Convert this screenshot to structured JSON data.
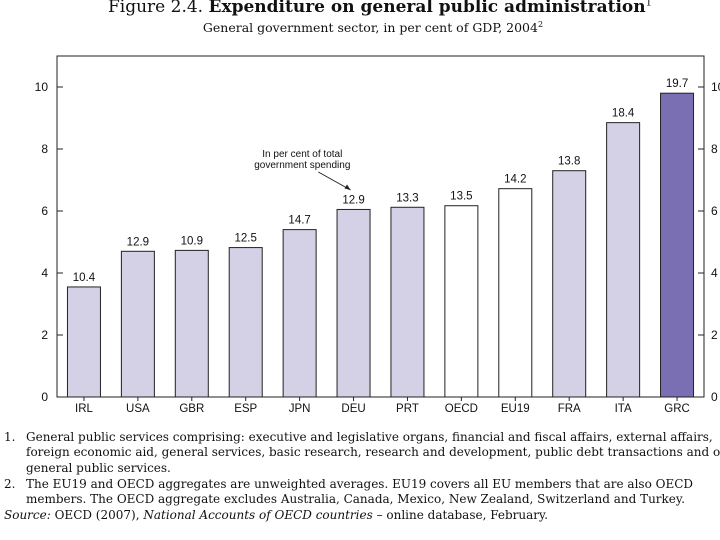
{
  "header": {
    "figure_label": "Figure 2.4.",
    "title": "Expenditure on general public administration",
    "title_note": "1",
    "subtitle": "General government sector, in per cent of GDP, 2004",
    "subtitle_note": "2"
  },
  "chart_data": {
    "type": "bar",
    "title": "Expenditure on general public administration",
    "subtitle": "General government sector, in per cent of GDP, 2004",
    "xlabel": "",
    "ylabel": "",
    "categories": [
      "IRL",
      "USA",
      "GBR",
      "ESP",
      "JPN",
      "DEU",
      "PRT",
      "OECD",
      "EU19",
      "FRA",
      "ITA",
      "GRC"
    ],
    "series": [
      {
        "name": "In per cent of GDP",
        "values": [
          3.55,
          4.7,
          4.73,
          4.82,
          5.4,
          6.05,
          6.12,
          6.17,
          6.72,
          7.3,
          8.85,
          9.8
        ]
      }
    ],
    "data_labels": [
      "10.4",
      "12.9",
      "10.9",
      "12.5",
      "14.7",
      "12.9",
      "13.3",
      "13.5",
      "14.2",
      "13.8",
      "18.4",
      "19.7"
    ],
    "data_labels_meaning": "In per cent of total government spending",
    "annotation": "In per cent of total\ngovernment spending",
    "ylim": [
      0,
      11
    ],
    "yticks": [
      0,
      2,
      4,
      6,
      8,
      10
    ],
    "tick_labels": [
      "0",
      "2",
      "4",
      "6",
      "8",
      "10"
    ],
    "grid": false,
    "right_axis": true,
    "colors": {
      "default": "#d4d1e6",
      "aggregate": "#ffffff",
      "highlight": "#7a6fb3",
      "stroke": "#222222"
    },
    "bar_styles": [
      "default",
      "default",
      "default",
      "default",
      "default",
      "default",
      "default",
      "aggregate",
      "aggregate",
      "default",
      "default",
      "highlight"
    ]
  },
  "notes": [
    {
      "num": "1.",
      "text": "General public services comprising: executive and legislative organs, financial and fiscal affairs, external affairs, foreign economic aid, general services, basic research, research and development, public debt transactions and other general public services."
    },
    {
      "num": "2.",
      "text": "The EU19 and OECD aggregates are unweighted averages. EU19 covers all EU members that are also OECD members. The OECD aggregate excludes Australia, Canada, Mexico, New Zealand, Switzerland and Turkey."
    }
  ],
  "source": {
    "label": "Source:",
    "text_before": " OECD (2007), ",
    "publication": "National Accounts of OECD countries",
    "text_after": " – online database, February."
  }
}
